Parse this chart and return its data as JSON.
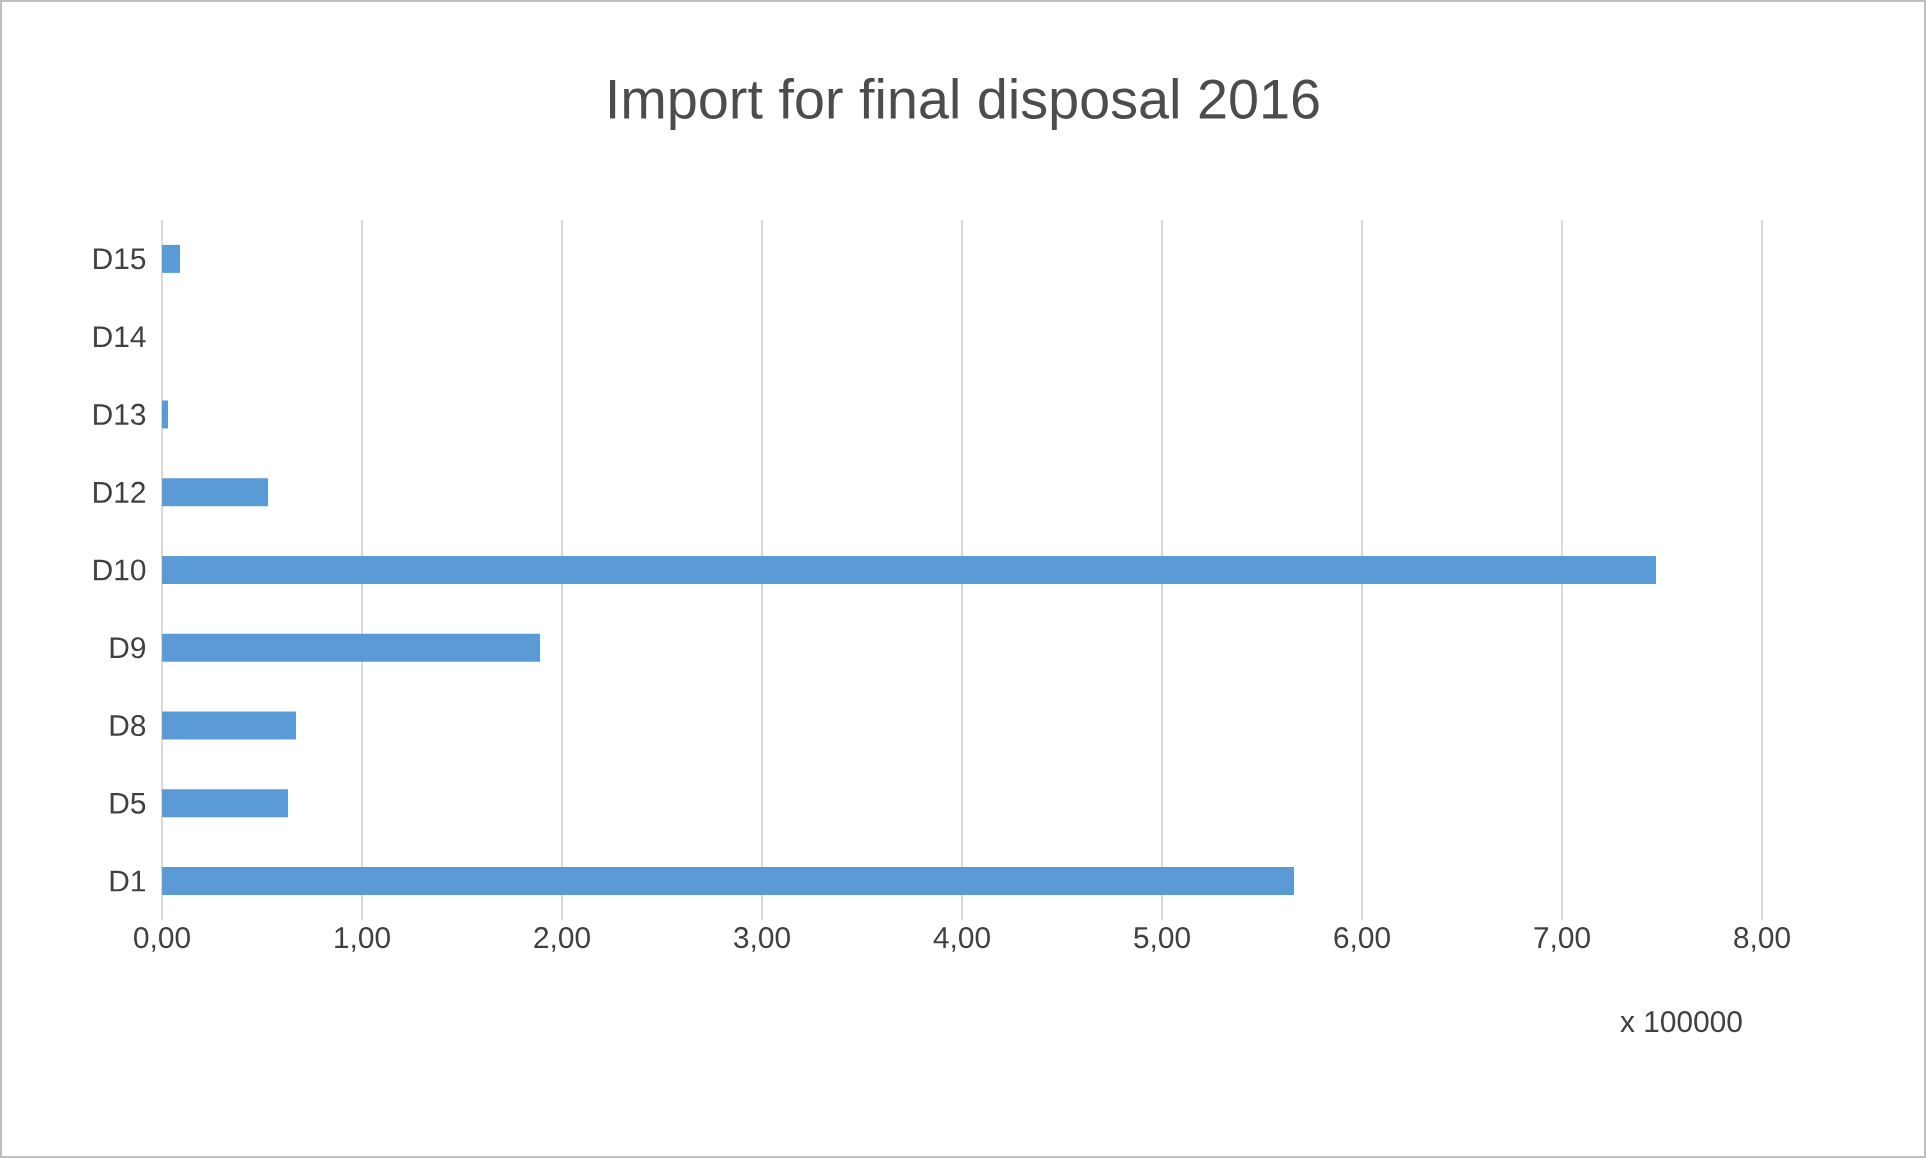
{
  "chart_data": {
    "type": "bar",
    "orientation": "horizontal",
    "title": "Import for final disposal 2016",
    "xlabel": "x 100000",
    "categories": [
      "D15",
      "D14",
      "D13",
      "D12",
      "D10",
      "D9",
      "D8",
      "D5",
      "D1"
    ],
    "values": [
      0.09,
      0,
      0.03,
      0.53,
      7.47,
      1.89,
      0.67,
      0.63,
      5.66
    ],
    "color": "#5b9bd5",
    "xlim": [
      0,
      8
    ],
    "xticks": [
      {
        "value": 0,
        "label": "0,00"
      },
      {
        "value": 1,
        "label": "1,00"
      },
      {
        "value": 2,
        "label": "2,00"
      },
      {
        "value": 3,
        "label": "3,00"
      },
      {
        "value": 4,
        "label": "4,00"
      },
      {
        "value": 5,
        "label": "5,00"
      },
      {
        "value": 6,
        "label": "6,00"
      },
      {
        "value": 7,
        "label": "7,00"
      },
      {
        "value": 8,
        "label": "8,00"
      }
    ],
    "grid": "x"
  }
}
